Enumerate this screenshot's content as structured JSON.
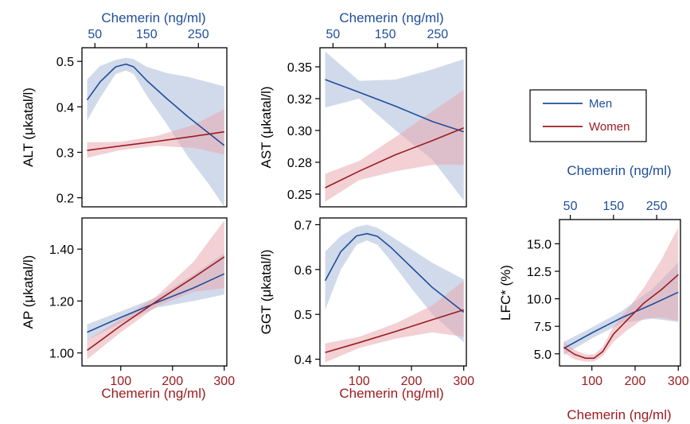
{
  "colors": {
    "men": "#1f4e9b",
    "women": "#9b1c20",
    "men_band": "#a9bcd8",
    "women_band": "#e8a9b0"
  },
  "legend": {
    "men": "Men",
    "women": "Women"
  },
  "labels": {
    "top_axis": "Chemerin (ng/ml)",
    "bottom_axis": "Chemerin (ng/ml)"
  },
  "chart_data": [
    {
      "id": "alt",
      "type": "line",
      "ylabel": "ALT (μkatal/l)",
      "xlim": [
        25,
        305
      ],
      "ylim": [
        0.18,
        0.53
      ],
      "xticks_top": [
        "50",
        "150",
        "250"
      ],
      "xticks_top_values": [
        50,
        150,
        250
      ],
      "xticks_bottom": [],
      "xticks_bottom_values": [],
      "yticks": [
        "0.2",
        "0.3",
        "0.4",
        "0.5"
      ],
      "ytick_values": [
        0.2,
        0.3,
        0.4,
        0.5
      ],
      "series": [
        {
          "name": "Men",
          "x": [
            35,
            60,
            90,
            110,
            125,
            150,
            190,
            230,
            270,
            300
          ],
          "y": [
            0.415,
            0.455,
            0.488,
            0.494,
            0.488,
            0.458,
            0.417,
            0.378,
            0.342,
            0.315
          ],
          "lo": [
            0.37,
            0.42,
            0.472,
            0.48,
            0.472,
            0.425,
            0.36,
            0.29,
            0.23,
            0.18
          ],
          "hi": [
            0.46,
            0.49,
            0.503,
            0.508,
            0.505,
            0.488,
            0.474,
            0.466,
            0.454,
            0.445
          ]
        },
        {
          "name": "Women",
          "x": [
            35,
            100,
            170,
            240,
            300
          ],
          "y": [
            0.304,
            0.314,
            0.324,
            0.335,
            0.345
          ],
          "lo": [
            0.288,
            0.305,
            0.314,
            0.31,
            0.295
          ],
          "hi": [
            0.322,
            0.323,
            0.336,
            0.36,
            0.395
          ]
        }
      ]
    },
    {
      "id": "ast",
      "type": "line",
      "ylabel": "AST (μkatal/l)",
      "xlim": [
        25,
        305
      ],
      "ylim": [
        0.24,
        0.365
      ],
      "xticks_top": [
        "50",
        "150",
        "250"
      ],
      "xticks_top_values": [
        50,
        150,
        250
      ],
      "xticks_bottom": [],
      "xticks_bottom_values": [],
      "yticks": [
        "0.25",
        "0.28",
        "0.30",
        "0.32",
        "0.35"
      ],
      "ytick_values": [
        0.25,
        0.275,
        0.3,
        0.325,
        0.35
      ],
      "series": [
        {
          "name": "Men",
          "x": [
            35,
            100,
            170,
            240,
            300
          ],
          "y": [
            0.34,
            0.33,
            0.319,
            0.307,
            0.299
          ],
          "lo": [
            0.318,
            0.325,
            0.3,
            0.277,
            0.245
          ],
          "hi": [
            0.362,
            0.339,
            0.34,
            0.348,
            0.356
          ]
        },
        {
          "name": "Women",
          "x": [
            35,
            100,
            170,
            240,
            300
          ],
          "y": [
            0.255,
            0.268,
            0.281,
            0.292,
            0.302
          ],
          "lo": [
            0.244,
            0.261,
            0.268,
            0.273,
            0.273
          ],
          "hi": [
            0.266,
            0.276,
            0.295,
            0.315,
            0.332
          ]
        }
      ]
    },
    {
      "id": "ap",
      "type": "line",
      "ylabel": "AP (μkatal/l)",
      "xlim": [
        25,
        305
      ],
      "ylim": [
        0.95,
        1.52
      ],
      "xticks_top": [],
      "xticks_top_values": [],
      "xticks_bottom": [
        "100",
        "200",
        "300"
      ],
      "xticks_bottom_values": [
        100,
        200,
        300
      ],
      "yticks": [
        "1.00",
        "1.20",
        "1.40"
      ],
      "ytick_values": [
        1.0,
        1.2,
        1.4
      ],
      "series": [
        {
          "name": "Men",
          "x": [
            35,
            100,
            170,
            240,
            300
          ],
          "y": [
            1.08,
            1.137,
            1.195,
            1.25,
            1.305
          ],
          "lo": [
            1.05,
            1.115,
            1.175,
            1.2,
            1.225
          ],
          "hi": [
            1.11,
            1.16,
            1.215,
            1.3,
            1.385
          ]
        },
        {
          "name": "Women",
          "x": [
            35,
            100,
            170,
            240,
            300
          ],
          "y": [
            1.01,
            1.105,
            1.2,
            1.29,
            1.37
          ],
          "lo": [
            0.975,
            1.08,
            1.18,
            1.235,
            1.25
          ],
          "hi": [
            1.05,
            1.13,
            1.22,
            1.35,
            1.51
          ]
        }
      ]
    },
    {
      "id": "ggt",
      "type": "line",
      "ylabel": "GGT (μkatal/l)",
      "xlim": [
        25,
        305
      ],
      "ylim": [
        0.385,
        0.715
      ],
      "xticks_top": [],
      "xticks_top_values": [],
      "xticks_bottom": [
        "100",
        "200",
        "300"
      ],
      "xticks_bottom_values": [
        100,
        200,
        300
      ],
      "yticks": [
        "0.4",
        "0.5",
        "0.6",
        "0.7"
      ],
      "ytick_values": [
        0.4,
        0.5,
        0.6,
        0.7
      ],
      "series": [
        {
          "name": "Men",
          "x": [
            35,
            65,
            95,
            115,
            135,
            160,
            200,
            240,
            300
          ],
          "y": [
            0.575,
            0.64,
            0.675,
            0.68,
            0.674,
            0.65,
            0.605,
            0.56,
            0.505
          ],
          "lo": [
            0.51,
            0.6,
            0.655,
            0.665,
            0.655,
            0.62,
            0.558,
            0.5,
            0.438
          ],
          "hi": [
            0.64,
            0.675,
            0.695,
            0.7,
            0.693,
            0.675,
            0.645,
            0.615,
            0.578
          ]
        },
        {
          "name": "Women",
          "x": [
            35,
            100,
            170,
            240,
            300
          ],
          "y": [
            0.415,
            0.437,
            0.462,
            0.488,
            0.51
          ],
          "lo": [
            0.393,
            0.425,
            0.446,
            0.46,
            0.45
          ],
          "hi": [
            0.435,
            0.45,
            0.48,
            0.52,
            0.575
          ]
        }
      ]
    },
    {
      "id": "lfc",
      "type": "line",
      "ylabel": "LFC* (%)",
      "xlim": [
        25,
        305
      ],
      "ylim": [
        3.9,
        17.2
      ],
      "xticks_top": [
        "50",
        "150",
        "250"
      ],
      "xticks_top_values": [
        50,
        150,
        250
      ],
      "xticks_bottom": [
        "100",
        "200",
        "300"
      ],
      "xticks_bottom_values": [
        100,
        200,
        300
      ],
      "yticks": [
        "5.0",
        "7.5",
        "10.0",
        "12.5",
        "15.0"
      ],
      "ytick_values": [
        5.0,
        7.5,
        10.0,
        12.5,
        15.0
      ],
      "series": [
        {
          "name": "Men",
          "x": [
            35,
            100,
            170,
            240,
            300
          ],
          "y": [
            5.5,
            6.9,
            8.3,
            9.5,
            10.6
          ],
          "lo": [
            4.9,
            6.4,
            7.8,
            8.2,
            7.9
          ],
          "hi": [
            6.1,
            7.4,
            8.9,
            10.9,
            13.3
          ]
        },
        {
          "name": "Women",
          "x": [
            35,
            60,
            85,
            105,
            125,
            150,
            180,
            220,
            260,
            300
          ],
          "y": [
            5.6,
            4.95,
            4.6,
            4.6,
            5.2,
            6.8,
            8.0,
            9.6,
            10.8,
            12.2
          ],
          "lo": [
            5.1,
            4.5,
            4.3,
            4.3,
            4.8,
            6.1,
            7.1,
            8.2,
            8.3,
            8.0
          ],
          "hi": [
            6.1,
            5.35,
            4.95,
            4.95,
            5.6,
            7.5,
            8.9,
            11.0,
            13.5,
            16.5
          ]
        }
      ]
    }
  ]
}
